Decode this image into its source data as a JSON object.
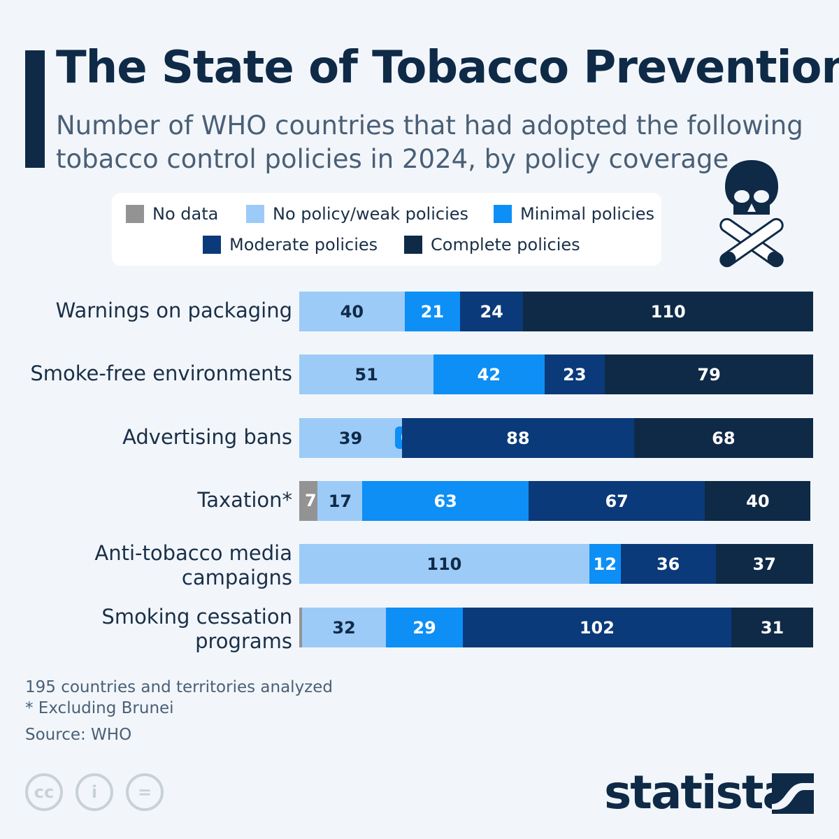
{
  "title": "The State of Tobacco Prevention",
  "subtitle": "Number of WHO countries that had adopted the following tobacco control policies in 2024, by policy coverage",
  "footer": {
    "note1": "195 countries and territories analyzed",
    "note2": "* Excluding Brunei",
    "source": "Source: WHO",
    "brand": "statista"
  },
  "chart_data": {
    "type": "bar",
    "stacked": true,
    "orientation": "horizontal",
    "title": "The State of Tobacco Prevention",
    "categories": [
      "Warnings on packaging",
      "Smoke-free environments",
      "Advertising bans",
      "Taxation*",
      "Anti-tobacco media campaigns",
      "Smoking cessation programs"
    ],
    "series": [
      {
        "name": "No data",
        "color": "#939393",
        "values": [
          0,
          0,
          0,
          7,
          0,
          1
        ]
      },
      {
        "name": "No policy/weak policies",
        "color": "#9ccbf7",
        "values": [
          40,
          51,
          39,
          17,
          110,
          32
        ]
      },
      {
        "name": "Minimal policies",
        "color": "#0d8ff5",
        "values": [
          21,
          42,
          0,
          63,
          12,
          29
        ]
      },
      {
        "name": "Moderate policies",
        "color": "#0b3a7a",
        "values": [
          24,
          23,
          88,
          67,
          36,
          102
        ]
      },
      {
        "name": "Complete policies",
        "color": "#0f2a47",
        "values": [
          110,
          79,
          68,
          40,
          37,
          31
        ]
      }
    ],
    "xlim": [
      0,
      195
    ],
    "legend": "top"
  }
}
